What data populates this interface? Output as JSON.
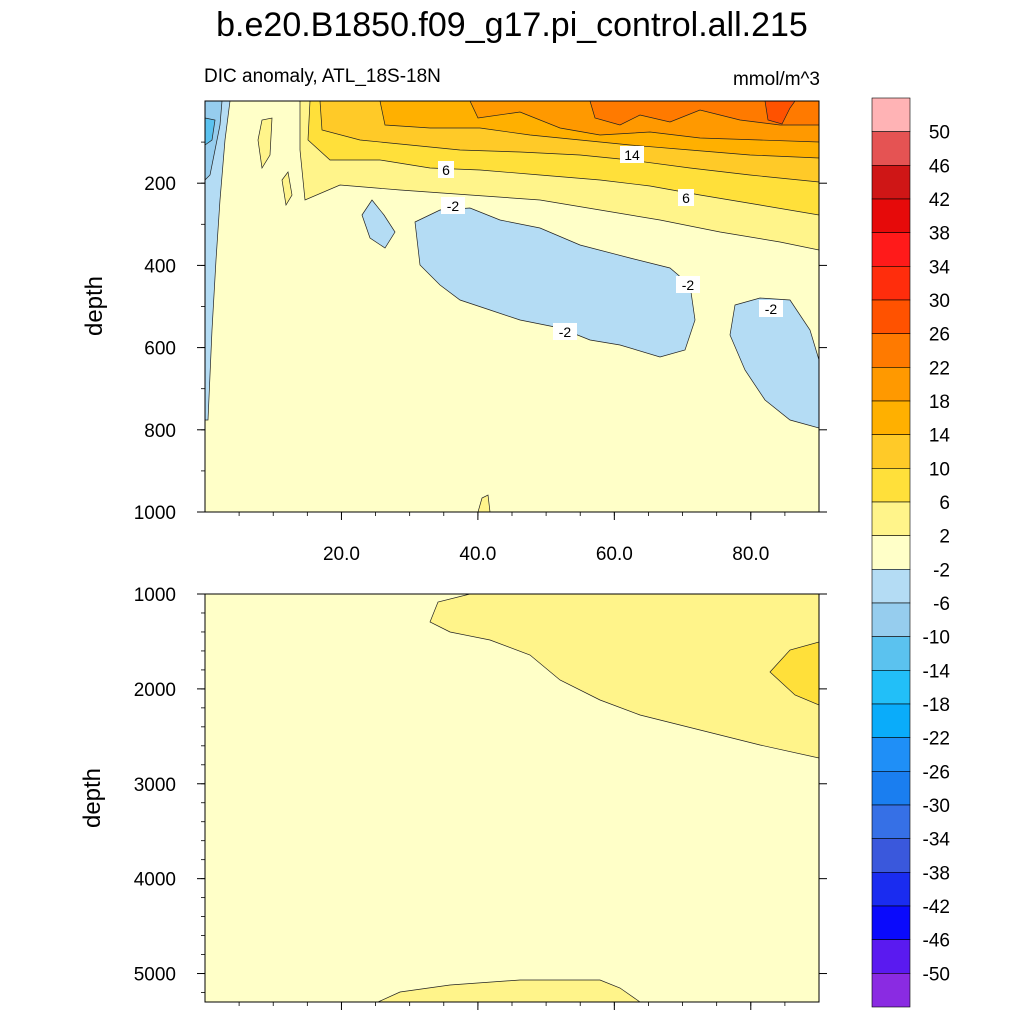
{
  "title": "b.e20.B1850.f09_g17.pi_control.all.215",
  "subtitle_left": "DIC anomaly, ATL_18S-18N",
  "subtitle_right": "mmol/m^3",
  "chart_data": [
    {
      "type": "contour",
      "name": "upper-panel",
      "ylabel": "depth",
      "xlim": [
        0,
        90
      ],
      "ylim": [
        0,
        1000
      ],
      "y_reversed": true,
      "x_ticks": [
        "20.0",
        "40.0",
        "60.0",
        "80.0"
      ],
      "y_ticks": [
        "200",
        "400",
        "600",
        "800",
        "1000"
      ],
      "contour_labels": [
        "6",
        "14",
        "-2",
        "6",
        "-2",
        "-2",
        "-2"
      ]
    },
    {
      "type": "contour",
      "name": "lower-panel",
      "ylabel": "depth",
      "xlim": [
        0,
        90
      ],
      "ylim": [
        1000,
        5300
      ],
      "y_reversed": true,
      "y_ticks": [
        "1000",
        "2000",
        "3000",
        "4000",
        "5000"
      ]
    }
  ],
  "colorbar": {
    "levels": [
      "50",
      "46",
      "42",
      "38",
      "34",
      "30",
      "26",
      "22",
      "18",
      "14",
      "10",
      "6",
      "2",
      "-2",
      "-6",
      "-10",
      "-14",
      "-18",
      "-22",
      "-26",
      "-30",
      "-34",
      "-38",
      "-42",
      "-46",
      "-50"
    ],
    "colors": [
      "#ffb3b5",
      "#e55353",
      "#cf1616",
      "#e60a0a",
      "#ff1a1a",
      "#ff2d0c",
      "#ff5200",
      "#ff7a00",
      "#ff9900",
      "#ffb000",
      "#ffca28",
      "#ffe03a",
      "#fff48a",
      "#ffffc8",
      "#b4dcf4",
      "#96cdee",
      "#5bc2ef",
      "#22bff8",
      "#0aacfa",
      "#1f8ff7",
      "#1a7ef0",
      "#3670e6",
      "#3a58dc",
      "#1a2cf0",
      "#0a0afc",
      "#5a1af0",
      "#8a2be2"
    ]
  }
}
